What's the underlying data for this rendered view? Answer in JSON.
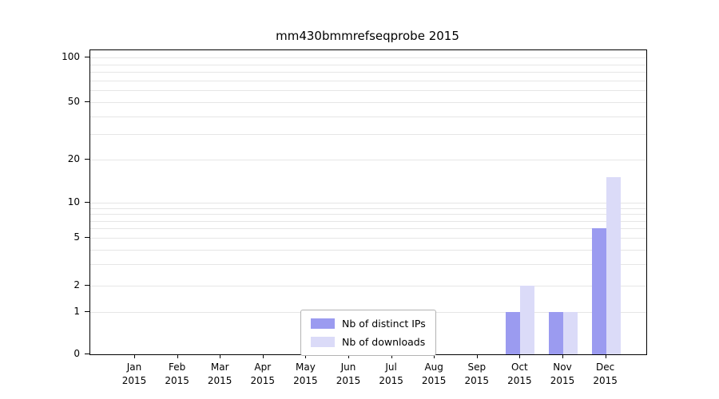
{
  "chart_data": {
    "type": "bar",
    "title": "mm430bmmrefseqprobe 2015",
    "categories": [
      "Jan 2015",
      "Feb 2015",
      "Mar 2015",
      "Apr 2015",
      "May 2015",
      "Jun 2015",
      "Jul 2015",
      "Aug 2015",
      "Sep 2015",
      "Oct 2015",
      "Nov 2015",
      "Dec 2015"
    ],
    "series": [
      {
        "name": "Nb of distinct IPs",
        "color": "#9b9bf0",
        "values": [
          0,
          0,
          0,
          0,
          0,
          0,
          0,
          0,
          0,
          1,
          1,
          6
        ]
      },
      {
        "name": "Nb of downloads",
        "color": "#dbdbf8",
        "values": [
          0,
          0,
          0,
          0,
          0,
          0,
          0,
          0,
          0,
          2,
          1,
          15
        ]
      }
    ],
    "xlabel": "",
    "ylabel": "",
    "yscale": "symlog",
    "yticks": [
      0,
      1,
      2,
      5,
      10,
      20,
      50,
      100
    ],
    "ylim": [
      0,
      100
    ],
    "grid": true,
    "legend_position": "lower center"
  }
}
